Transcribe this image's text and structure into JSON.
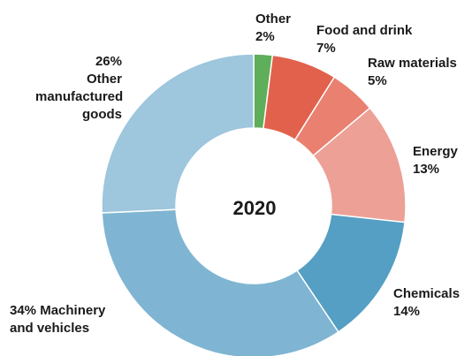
{
  "chart_data": {
    "type": "pie",
    "center_label": "2020",
    "slices": [
      {
        "name_lines": [
          "Other"
        ],
        "pct_text": "2%",
        "value": 2,
        "color": "#5fae5a"
      },
      {
        "name_lines": [
          "Food and drink"
        ],
        "pct_text": "7%",
        "value": 7,
        "color": "#e2614c"
      },
      {
        "name_lines": [
          "Raw materials"
        ],
        "pct_text": "5%",
        "value": 5,
        "color": "#ea8070"
      },
      {
        "name_lines": [
          "Energy"
        ],
        "pct_text": "13%",
        "value": 13,
        "color": "#eca096"
      },
      {
        "name_lines": [
          "Chemicals"
        ],
        "pct_text": "14%",
        "value": 14,
        "color": "#549fc3"
      },
      {
        "name_lines": [
          "Machinery",
          "and vehicles"
        ],
        "pct_text": "34%",
        "value": 34,
        "color": "#7fb5d2"
      },
      {
        "name_lines": [
          "Other",
          "manufactured",
          "goods"
        ],
        "pct_text": "26%",
        "value": 26,
        "color": "#9ec6dd"
      }
    ]
  }
}
